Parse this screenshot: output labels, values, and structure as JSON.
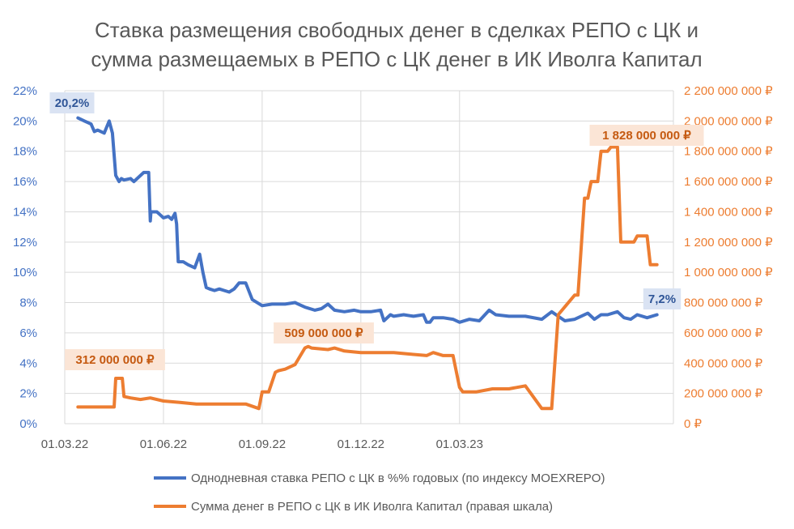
{
  "chart_data": {
    "type": "line",
    "title_lines": [
      "Ставка размещения свободных денег в сделках РЕПО с ЦК и",
      "сумма размещаемых в РЕПО с ЦК денег в ИК Иволга Капитал"
    ],
    "x_tick_labels": [
      "01.03.22",
      "01.06.22",
      "01.09.22",
      "01.12.22",
      "01.03.23"
    ],
    "x_month_range": [
      0,
      18.5
    ],
    "y_left": {
      "ylim": [
        0,
        22
      ],
      "ticks": [
        "0%",
        "2%",
        "4%",
        "6%",
        "8%",
        "10%",
        "12%",
        "14%",
        "16%",
        "18%",
        "20%",
        "22%"
      ]
    },
    "y_right": {
      "ylim": [
        0,
        2200000000
      ],
      "ticks": [
        "0 ₽",
        "200 000 000 ₽",
        "400 000 000 ₽",
        "600 000 000 ₽",
        "800 000 000 ₽",
        "1 000 000 000 ₽",
        "1 200 000 000 ₽",
        "1 400 000 000 ₽",
        "1 600 000 000 ₽",
        "1 800 000 000 ₽",
        "2 000 000 000 ₽",
        "2 200 000 000 ₽"
      ]
    },
    "series": [
      {
        "name": "Однодневная ставка РЕПО с ЦК в %% годовых (по индексу MOEXREPO)",
        "axis": "left",
        "color": "#4472c4",
        "x": [
          0.4,
          0.6,
          0.8,
          0.9,
          1.0,
          1.2,
          1.35,
          1.45,
          1.55,
          1.65,
          1.72,
          1.8,
          2.0,
          2.1,
          2.4,
          2.55,
          2.6,
          2.62,
          2.8,
          2.9,
          3.0,
          3.15,
          3.25,
          3.35,
          3.4,
          3.45,
          3.6,
          3.75,
          3.95,
          4.1,
          4.2,
          4.3,
          4.4,
          4.55,
          4.7,
          4.85,
          5.0,
          5.15,
          5.3,
          5.5,
          5.7,
          6.0,
          6.3,
          6.7,
          7.0,
          7.1,
          7.3,
          7.6,
          7.8,
          8.0,
          8.2,
          8.5,
          8.8,
          9.0,
          9.3,
          9.6,
          9.7,
          9.9,
          10.0,
          10.3,
          10.6,
          10.9,
          11.0,
          11.1,
          11.2,
          11.5,
          11.8,
          12.0,
          12.3,
          12.6,
          12.9,
          13.1,
          13.5,
          14.0,
          14.5,
          14.8,
          15.2,
          15.5,
          15.9,
          16.1,
          16.3,
          16.5,
          16.8,
          17.0,
          17.2,
          17.4,
          17.7,
          18.0
        ],
        "values": [
          20.2,
          20.0,
          19.8,
          19.3,
          19.4,
          19.2,
          20.0,
          19.2,
          16.4,
          16.0,
          16.2,
          16.1,
          16.2,
          16.0,
          16.6,
          16.6,
          13.4,
          14.0,
          14.0,
          13.8,
          13.6,
          13.7,
          13.5,
          13.9,
          13.2,
          10.7,
          10.7,
          10.5,
          10.3,
          11.2,
          10.0,
          9.0,
          8.9,
          8.8,
          8.9,
          8.8,
          8.7,
          8.9,
          9.3,
          9.3,
          8.2,
          7.8,
          7.9,
          7.9,
          8.0,
          7.9,
          7.7,
          7.5,
          7.6,
          7.9,
          7.5,
          7.4,
          7.5,
          7.4,
          7.4,
          7.5,
          6.8,
          7.2,
          7.1,
          7.2,
          7.1,
          7.2,
          6.7,
          6.7,
          7.0,
          7.0,
          6.9,
          6.7,
          6.9,
          6.8,
          7.5,
          7.2,
          7.1,
          7.1,
          6.9,
          7.4,
          6.8,
          6.9,
          7.3,
          6.9,
          7.2,
          7.2,
          7.4,
          7.0,
          6.9,
          7.2,
          7.0,
          7.2
        ]
      },
      {
        "name": "Сумма денег в РЕПО с ЦК в ИК Иволга Капитал (правая шкала)",
        "axis": "right",
        "color": "#ed7d31",
        "x": [
          0.4,
          1.5,
          1.55,
          1.75,
          1.8,
          2.0,
          2.3,
          2.6,
          3.0,
          3.5,
          4.0,
          4.5,
          5.0,
          5.5,
          5.9,
          6.0,
          6.2,
          6.4,
          6.5,
          6.7,
          7.0,
          7.3,
          7.4,
          7.5,
          8.0,
          8.2,
          8.5,
          9.0,
          9.5,
          10.0,
          10.5,
          11.0,
          11.2,
          11.5,
          11.8,
          12.0,
          12.1,
          12.5,
          13.0,
          13.5,
          14.0,
          14.5,
          14.8,
          15.0,
          15.5,
          15.6,
          15.8,
          15.9,
          16.0,
          16.2,
          16.3,
          16.5,
          16.6,
          16.8,
          16.9,
          17.3,
          17.4,
          17.7,
          17.8,
          18.0
        ],
        "values": [
          110000000,
          110000000,
          300000000,
          300000000,
          180000000,
          170000000,
          160000000,
          170000000,
          150000000,
          140000000,
          130000000,
          130000000,
          130000000,
          130000000,
          100000000,
          210000000,
          210000000,
          340000000,
          350000000,
          360000000,
          390000000,
          500000000,
          510000000,
          500000000,
          490000000,
          500000000,
          480000000,
          470000000,
          470000000,
          470000000,
          460000000,
          450000000,
          470000000,
          450000000,
          450000000,
          240000000,
          210000000,
          210000000,
          230000000,
          230000000,
          250000000,
          100000000,
          100000000,
          720000000,
          850000000,
          850000000,
          1490000000,
          1490000000,
          1600000000,
          1600000000,
          1800000000,
          1800000000,
          1828000000,
          1828000000,
          1200000000,
          1200000000,
          1240000000,
          1240000000,
          1050000000,
          1050000000
        ]
      }
    ],
    "callouts": {
      "blue_start": "20,2%",
      "blue_end": "7,2%",
      "orange_1": "312 000 000 ₽",
      "orange_2": "509 000 000 ₽",
      "orange_3": "1 828 000 000 ₽"
    },
    "legend": [
      "Однодневная ставка РЕПО с ЦК в %% годовых (по индексу MOEXREPO)",
      "Сумма денег в РЕПО с ЦК в ИК Иволга Капитал (правая шкала)"
    ],
    "grid": true
  }
}
